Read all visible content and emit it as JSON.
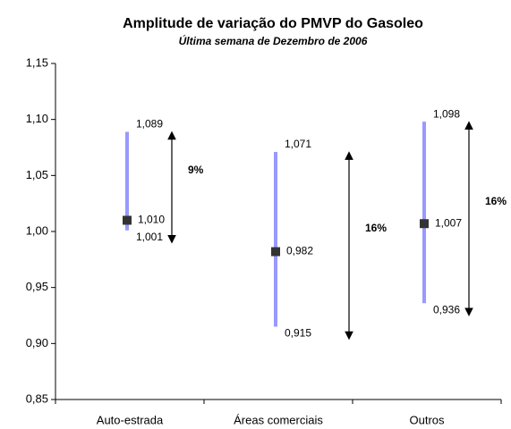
{
  "chart_data": {
    "type": "range",
    "title": "Amplitude de variação do PMVP do Gasoleo",
    "subtitle": "Última semana de Dezembro de 2006",
    "categories": [
      "Auto-estrada",
      "Áreas comerciais",
      "Outros"
    ],
    "high": {
      "values": [
        1.089,
        1.071,
        1.098
      ],
      "value_labels": [
        "1,089",
        "1,071",
        "1,098"
      ]
    },
    "low": {
      "values": [
        1.001,
        0.915,
        0.936
      ],
      "value_labels": [
        "1,001",
        "0,915",
        "0,936"
      ]
    },
    "mean": {
      "values": [
        1.01,
        0.982,
        1.007
      ],
      "value_labels": [
        "1,010",
        "0,982",
        "1,007"
      ]
    },
    "annotations": [
      "9%",
      "16%",
      "16%"
    ],
    "range_color": "#9999ff",
    "mean_color": "#333333",
    "ylim": [
      0.85,
      1.15
    ],
    "yticks": [
      {
        "value": 0.85,
        "label": "0,85"
      },
      {
        "value": 0.9,
        "label": "0,90"
      },
      {
        "value": 0.95,
        "label": "0,95"
      },
      {
        "value": 1.0,
        "label": "1,00"
      },
      {
        "value": 1.05,
        "label": "1,05"
      },
      {
        "value": 1.1,
        "label": "1,10"
      },
      {
        "value": 1.15,
        "label": "1,15"
      }
    ]
  }
}
